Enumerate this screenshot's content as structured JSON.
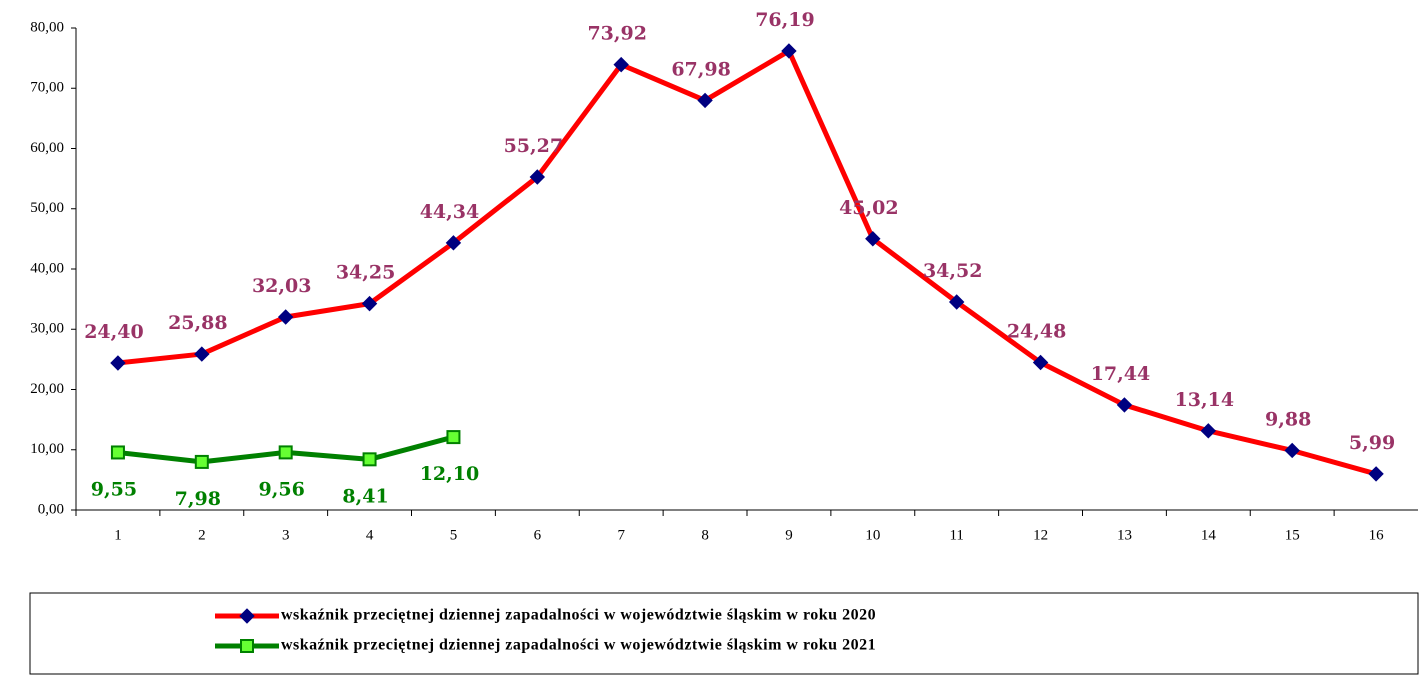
{
  "chart_data": {
    "type": "line",
    "categories": [
      "1",
      "2",
      "3",
      "4",
      "5",
      "6",
      "7",
      "8",
      "9",
      "10",
      "11",
      "12",
      "13",
      "14",
      "15",
      "16"
    ],
    "series": [
      {
        "name": "wskaźnik przeciętnej dziennej zapadalności w województwie śląskim w roku 2020",
        "color": "#ff0000",
        "marker": "diamond",
        "marker_color": "#000080",
        "label_color": "#993366",
        "label_position": "above",
        "values": [
          24.4,
          25.88,
          32.03,
          34.25,
          44.34,
          55.27,
          73.92,
          67.98,
          76.19,
          45.02,
          34.52,
          24.48,
          17.44,
          13.14,
          9.88,
          5.99
        ],
        "value_labels": [
          "24,40",
          "25,88",
          "32,03",
          "34,25",
          "44,34",
          "55,27",
          "73,92",
          "67,98",
          "76,19",
          "45,02",
          "34,52",
          "24,48",
          "17,44",
          "13,14",
          "9,88",
          "5,99"
        ]
      },
      {
        "name": "wskaźnik przeciętnej dziennej zapadalności w województwie śląskim w roku 2021",
        "color": "#008000",
        "marker": "square",
        "marker_color": "#66ff33",
        "label_color": "#008000",
        "label_position": "below",
        "values": [
          9.55,
          7.98,
          9.56,
          8.41,
          12.1,
          null,
          null,
          null,
          null,
          null,
          null,
          null,
          null,
          null,
          null,
          null
        ],
        "value_labels": [
          "9,55",
          "7,98",
          "9,56",
          "8,41",
          "12,10",
          null,
          null,
          null,
          null,
          null,
          null,
          null,
          null,
          null,
          null,
          null
        ]
      }
    ],
    "ylim": [
      0,
      80
    ],
    "yticks": [
      {
        "value": 0,
        "label": "0,00"
      },
      {
        "value": 10,
        "label": "10,00"
      },
      {
        "value": 20,
        "label": "20,00"
      },
      {
        "value": 30,
        "label": "30,00"
      },
      {
        "value": 40,
        "label": "40,00"
      },
      {
        "value": 50,
        "label": "50,00"
      },
      {
        "value": 60,
        "label": "60,00"
      },
      {
        "value": 70,
        "label": "70,00"
      },
      {
        "value": 80,
        "label": "80,00"
      }
    ],
    "grid": false,
    "legend": "bottom"
  }
}
